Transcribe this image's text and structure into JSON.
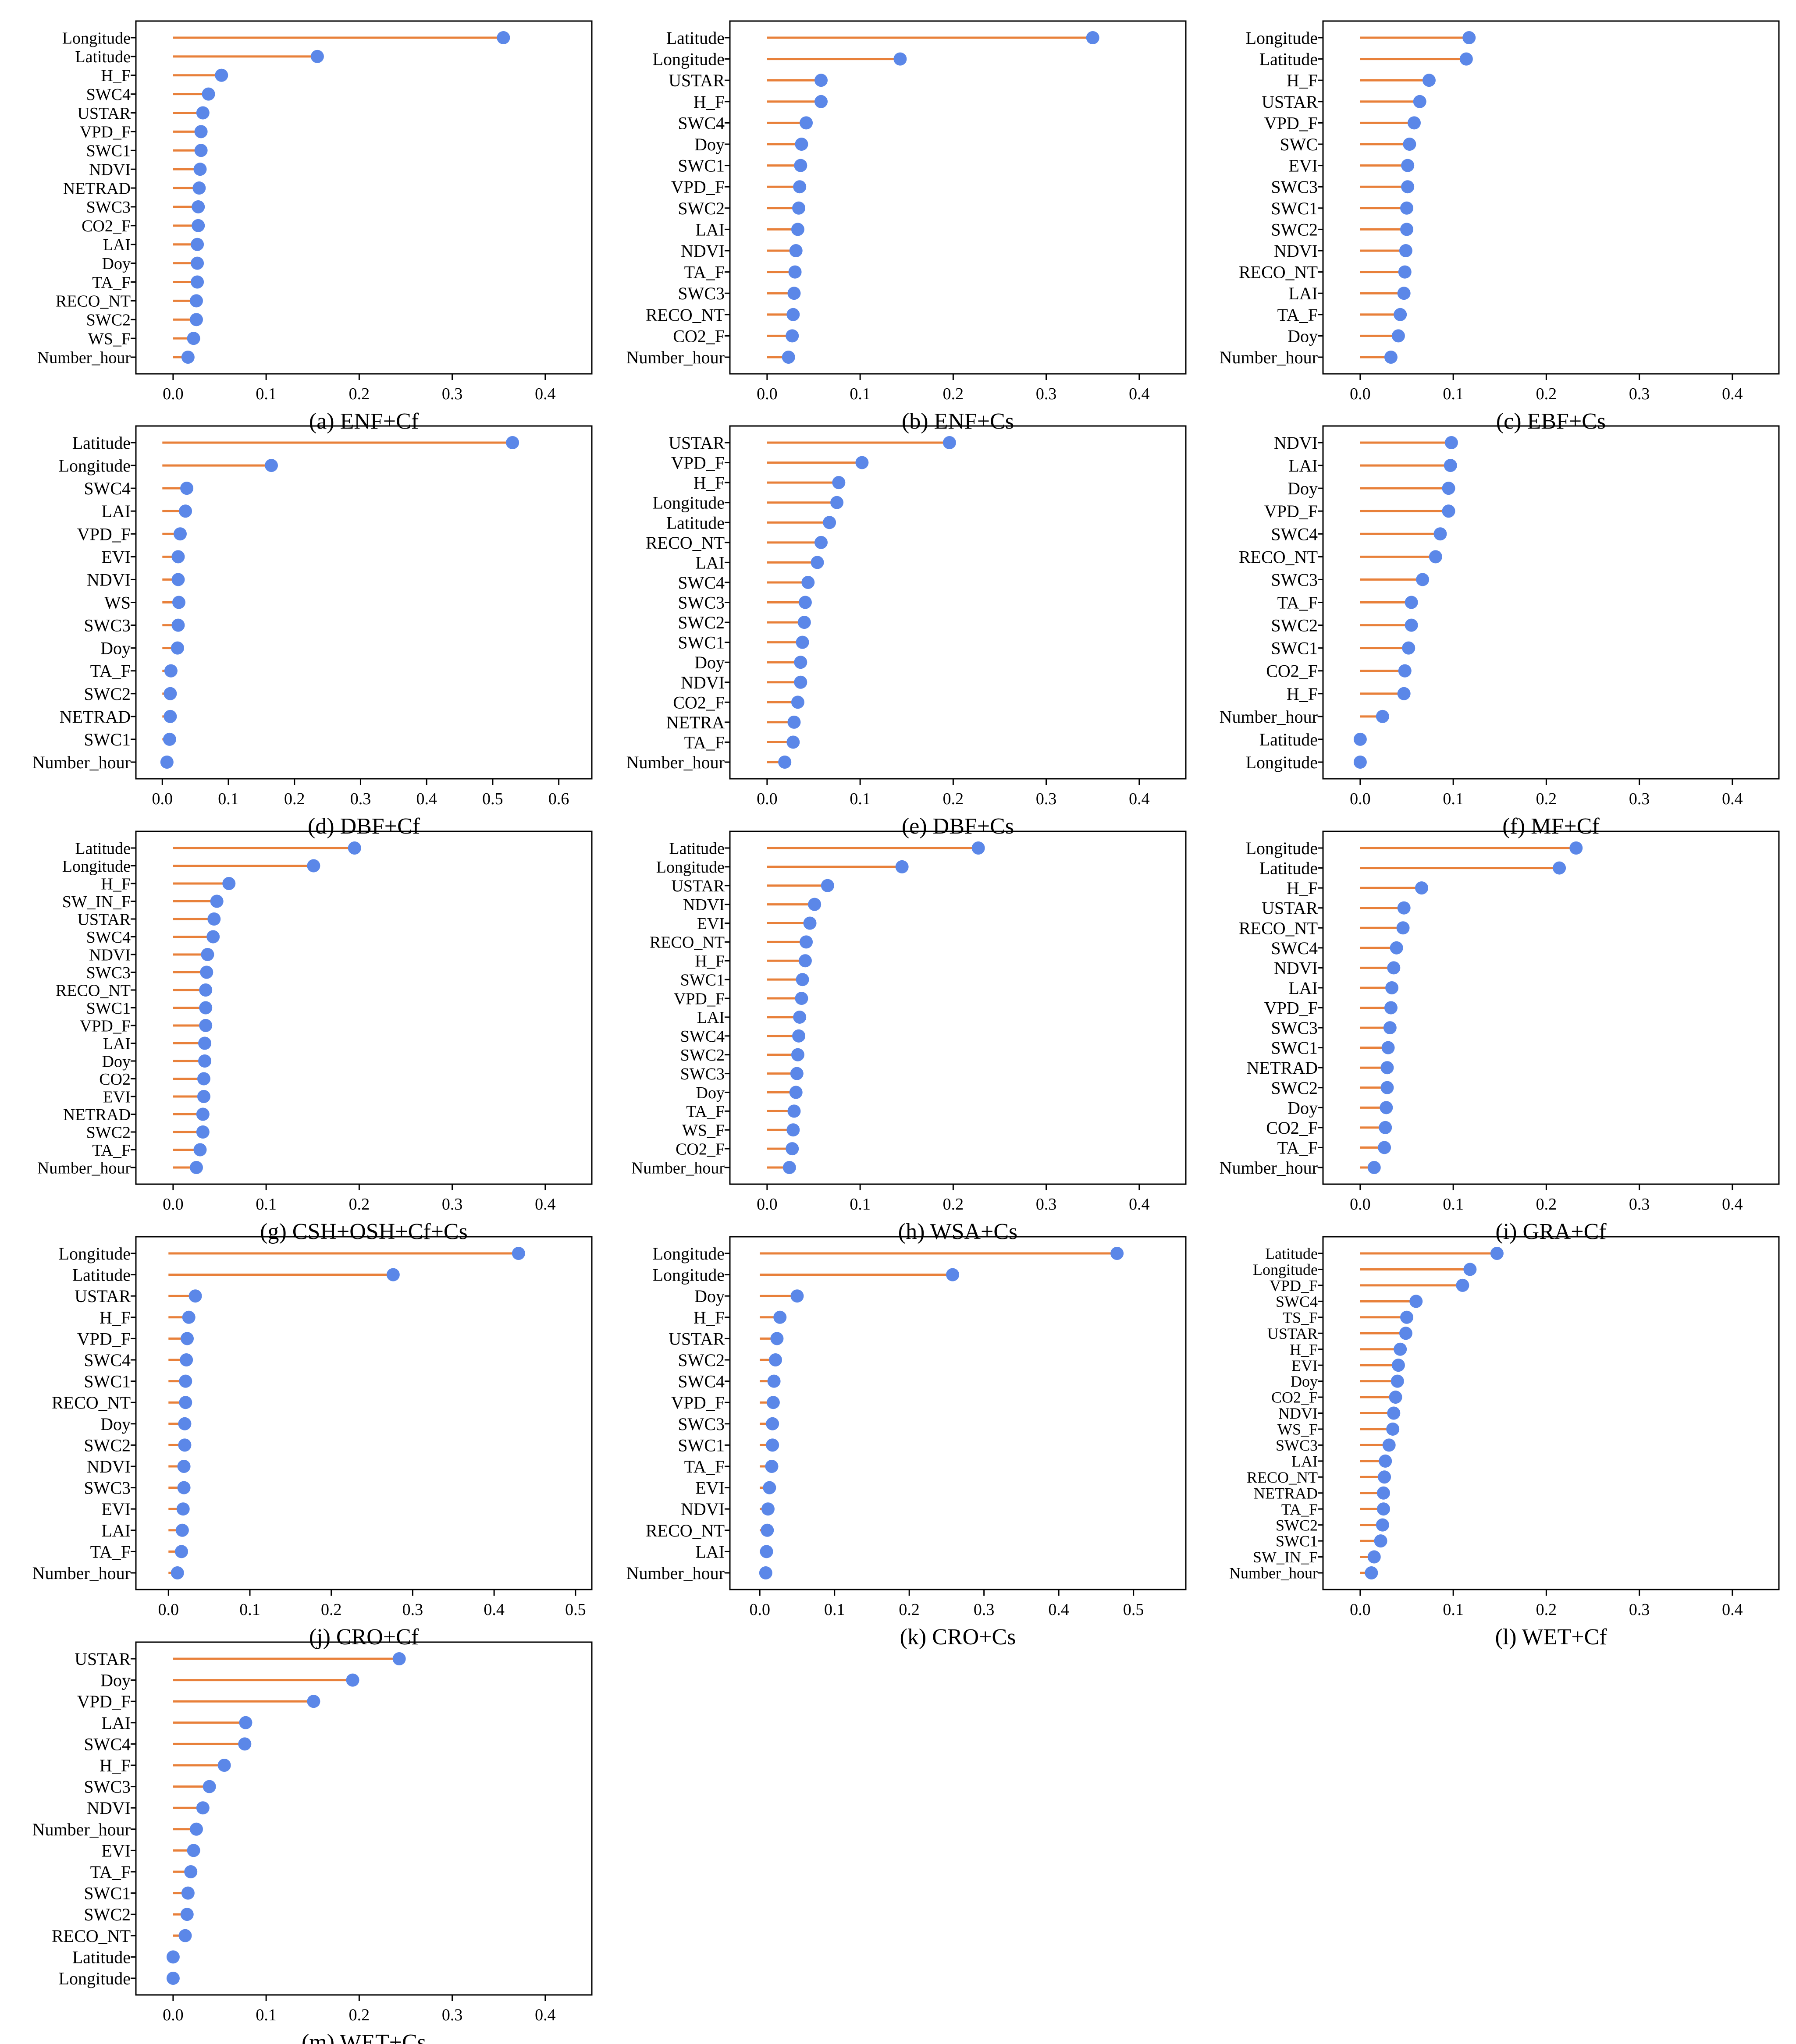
{
  "colors": {
    "stem": "#e8803a",
    "marker": "#5b87e8",
    "frame": "#000000"
  },
  "chart_data": [
    {
      "type": "lollipop",
      "title": "(a) ENF+Cf",
      "xticks": [
        "0.0",
        "0.1",
        "0.2",
        "0.3",
        "0.4"
      ],
      "xlim": [
        -0.04,
        0.45
      ],
      "categories": [
        "Longitude",
        "Latitude",
        "H_F",
        "SWC4",
        "USTAR",
        "VPD_F",
        "SWC1",
        "NDVI",
        "NETRAD",
        "SWC3",
        "CO2_F",
        "LAI",
        "Doy",
        "TA_F",
        "RECO_NT",
        "SWC2",
        "WS_F",
        "Number_hour"
      ],
      "values": [
        0.355,
        0.155,
        0.052,
        0.038,
        0.032,
        0.03,
        0.03,
        0.029,
        0.028,
        0.027,
        0.027,
        0.026,
        0.026,
        0.026,
        0.025,
        0.025,
        0.022,
        0.016
      ]
    },
    {
      "type": "lollipop",
      "title": "(b) ENF+Cs",
      "xticks": [
        "0.0",
        "0.1",
        "0.2",
        "0.3",
        "0.4"
      ],
      "xlim": [
        -0.04,
        0.45
      ],
      "categories": [
        "Latitude",
        "Longitude",
        "USTAR",
        "H_F",
        "SWC4",
        "Doy",
        "SWC1",
        "VPD_F",
        "SWC2",
        "LAI",
        "NDVI",
        "TA_F",
        "SWC3",
        "RECO_NT",
        "CO2_F",
        "Number_hour"
      ],
      "values": [
        0.35,
        0.143,
        0.058,
        0.058,
        0.042,
        0.037,
        0.036,
        0.035,
        0.034,
        0.033,
        0.031,
        0.03,
        0.029,
        0.028,
        0.027,
        0.023
      ]
    },
    {
      "type": "lollipop",
      "title": "(c) EBF+Cs",
      "xticks": [
        "0.0",
        "0.1",
        "0.2",
        "0.3",
        "0.4"
      ],
      "xlim": [
        -0.04,
        0.45
      ],
      "categories": [
        "Longitude",
        "Latitude",
        "H_F",
        "USTAR",
        "VPD_F",
        "SWC",
        "EVI",
        "SWC3",
        "SWC1",
        "SWC2",
        "NDVI",
        "RECO_NT",
        "LAI",
        "TA_F",
        "Doy",
        "Number_hour"
      ],
      "values": [
        0.117,
        0.114,
        0.074,
        0.064,
        0.058,
        0.053,
        0.051,
        0.051,
        0.05,
        0.05,
        0.049,
        0.048,
        0.047,
        0.043,
        0.041,
        0.033
      ]
    },
    {
      "type": "lollipop",
      "title": "(d) DBF+Cf",
      "xticks": [
        "0.0",
        "0.1",
        "0.2",
        "0.3",
        "0.4",
        "0.5",
        "0.6"
      ],
      "xlim": [
        -0.04,
        0.65
      ],
      "categories": [
        "Latitude",
        "Longitude",
        "SWC4",
        "LAI",
        "VPD_F",
        "EVI",
        "NDVI",
        "WS",
        "SWC3",
        "Doy",
        "TA_F",
        "SWC2",
        "NETRAD",
        "SWC1",
        "Number_hour"
      ],
      "values": [
        0.53,
        0.165,
        0.037,
        0.035,
        0.027,
        0.024,
        0.024,
        0.025,
        0.024,
        0.023,
        0.013,
        0.012,
        0.012,
        0.011,
        0.007
      ]
    },
    {
      "type": "lollipop",
      "title": "(e) DBF+Cs",
      "xticks": [
        "0.0",
        "0.1",
        "0.2",
        "0.3",
        "0.4"
      ],
      "xlim": [
        -0.04,
        0.45
      ],
      "categories": [
        "USTAR",
        "VPD_F",
        "H_F",
        "Longitude",
        "Latitude",
        "RECO_NT",
        "LAI",
        "SWC4",
        "SWC3",
        "SWC2",
        "SWC1",
        "Doy",
        "NDVI",
        "CO2_F",
        "NETRA",
        "TA_F",
        "Number_hour"
      ],
      "values": [
        0.196,
        0.102,
        0.077,
        0.075,
        0.067,
        0.058,
        0.054,
        0.044,
        0.041,
        0.04,
        0.038,
        0.036,
        0.036,
        0.033,
        0.029,
        0.028,
        0.019
      ]
    },
    {
      "type": "lollipop",
      "title": "(f) MF+Cf",
      "xticks": [
        "0.0",
        "0.1",
        "0.2",
        "0.3",
        "0.4"
      ],
      "xlim": [
        -0.04,
        0.45
      ],
      "categories": [
        "NDVI",
        "LAI",
        "Doy",
        "VPD_F",
        "SWC4",
        "RECO_NT",
        "SWC3",
        "TA_F",
        "SWC2",
        "SWC1",
        "CO2_F",
        "H_F",
        "Number_hour",
        "Latitude",
        "Longitude"
      ],
      "values": [
        0.098,
        0.097,
        0.095,
        0.095,
        0.086,
        0.081,
        0.067,
        0.055,
        0.055,
        0.052,
        0.048,
        0.047,
        0.024,
        0.0,
        0.0
      ]
    },
    {
      "type": "lollipop",
      "title": "(g) CSH+OSH+Cf+Cs",
      "xticks": [
        "0.0",
        "0.1",
        "0.2",
        "0.3",
        "0.4"
      ],
      "xlim": [
        -0.04,
        0.45
      ],
      "categories": [
        "Latitude",
        "Longitude",
        "H_F",
        "SW_IN_F",
        "USTAR",
        "SWC4",
        "NDVI",
        "SWC3",
        "RECO_NT",
        "SWC1",
        "VPD_F",
        "LAI",
        "Doy",
        "CO2",
        "EVI",
        "NETRAD",
        "SWC2",
        "TA_F",
        "Number_hour"
      ],
      "values": [
        0.195,
        0.151,
        0.06,
        0.047,
        0.044,
        0.043,
        0.037,
        0.036,
        0.035,
        0.035,
        0.035,
        0.034,
        0.034,
        0.033,
        0.033,
        0.032,
        0.032,
        0.029,
        0.025
      ]
    },
    {
      "type": "lollipop",
      "title": "(h) WSA+Cs",
      "xticks": [
        "0.0",
        "0.1",
        "0.2",
        "0.3",
        "0.4"
      ],
      "xlim": [
        -0.04,
        0.45
      ],
      "categories": [
        "Latitude",
        "Longitude",
        "USTAR",
        "NDVI",
        "EVI",
        "RECO_NT",
        "H_F",
        "SWC1",
        "VPD_F",
        "LAI",
        "SWC4",
        "SWC2",
        "SWC3",
        "Doy",
        "TA_F",
        "WS_F",
        "CO2_F",
        "Number_hour"
      ],
      "values": [
        0.227,
        0.145,
        0.065,
        0.051,
        0.046,
        0.042,
        0.041,
        0.038,
        0.037,
        0.035,
        0.034,
        0.033,
        0.032,
        0.031,
        0.029,
        0.028,
        0.027,
        0.024
      ]
    },
    {
      "type": "lollipop",
      "title": "(i) GRA+Cf",
      "xticks": [
        "0.0",
        "0.1",
        "0.2",
        "0.3",
        "0.4"
      ],
      "xlim": [
        -0.04,
        0.45
      ],
      "categories": [
        "Longitude",
        "Latitude",
        "H_F",
        "USTAR",
        "RECO_NT",
        "SWC4",
        "NDVI",
        "LAI",
        "VPD_F",
        "SWC3",
        "SWC1",
        "NETRAD",
        "SWC2",
        "Doy",
        "CO2_F",
        "TA_F",
        "Number_hour"
      ],
      "values": [
        0.232,
        0.214,
        0.066,
        0.047,
        0.046,
        0.039,
        0.036,
        0.034,
        0.033,
        0.032,
        0.03,
        0.029,
        0.029,
        0.028,
        0.027,
        0.026,
        0.015
      ]
    },
    {
      "type": "lollipop",
      "title": "(j) CRO+Cf",
      "xticks": [
        "0.0",
        "0.1",
        "0.2",
        "0.3",
        "0.4",
        "0.5"
      ],
      "xlim": [
        -0.04,
        0.52
      ],
      "categories": [
        "Longitude",
        "Latitude",
        "USTAR",
        "H_F",
        "VPD_F",
        "SWC4",
        "SWC1",
        "RECO_NT",
        "Doy",
        "SWC2",
        "NDVI",
        "SWC3",
        "EVI",
        "LAI",
        "TA_F",
        "Number_hour"
      ],
      "values": [
        0.43,
        0.276,
        0.033,
        0.025,
        0.023,
        0.022,
        0.021,
        0.021,
        0.02,
        0.02,
        0.019,
        0.019,
        0.018,
        0.017,
        0.016,
        0.011
      ]
    },
    {
      "type": "lollipop",
      "title": "(k) CRO+Cs",
      "xticks": [
        "0.0",
        "0.1",
        "0.2",
        "0.3",
        "0.4",
        "0.5"
      ],
      "xlim": [
        -0.04,
        0.57
      ],
      "categories": [
        "Longitude",
        "Longitude",
        "Doy",
        "H_F",
        "USTAR",
        "SWC2",
        "SWC4",
        "VPD_F",
        "SWC3",
        "SWC1",
        "TA_F",
        "EVI",
        "NDVI",
        "RECO_NT",
        "LAI",
        "Number_hour"
      ],
      "values": [
        0.478,
        0.258,
        0.05,
        0.027,
        0.023,
        0.021,
        0.019,
        0.018,
        0.017,
        0.017,
        0.016,
        0.013,
        0.011,
        0.01,
        0.009,
        0.008
      ]
    },
    {
      "type": "lollipop",
      "title": "(l) WET+Cf",
      "xticks": [
        "0.0",
        "0.1",
        "0.2",
        "0.3",
        "0.4"
      ],
      "xlim": [
        -0.04,
        0.45
      ],
      "categories": [
        "Latitude",
        "Longitude",
        "VPD_F",
        "SWC4",
        "TS_F",
        "USTAR",
        "H_F",
        "EVI",
        "Doy",
        "CO2_F",
        "NDVI",
        "WS_F",
        "SWC3",
        "LAI",
        "RECO_NT",
        "NETRAD",
        "TA_F",
        "SWC2",
        "SWC1",
        "SW_IN_F",
        "Number_hour"
      ],
      "values": [
        0.147,
        0.118,
        0.11,
        0.06,
        0.05,
        0.049,
        0.043,
        0.041,
        0.04,
        0.038,
        0.036,
        0.035,
        0.031,
        0.027,
        0.026,
        0.025,
        0.025,
        0.024,
        0.022,
        0.015,
        0.012
      ]
    },
    {
      "type": "lollipop",
      "title": "(m) WET+Cs",
      "xticks": [
        "0.0",
        "0.1",
        "0.2",
        "0.3",
        "0.4"
      ],
      "xlim": [
        -0.04,
        0.45
      ],
      "categories": [
        "USTAR",
        "Doy",
        "VPD_F",
        "LAI",
        "SWC4",
        "H_F",
        "SWC3",
        "NDVI",
        "Number_hour",
        "EVI",
        "TA_F",
        "SWC1",
        "SWC2",
        "RECO_NT",
        "Latitude",
        "Longitude"
      ],
      "values": [
        0.243,
        0.193,
        0.151,
        0.078,
        0.077,
        0.055,
        0.039,
        0.032,
        0.025,
        0.022,
        0.019,
        0.016,
        0.015,
        0.013,
        0.0,
        0.0
      ]
    }
  ]
}
